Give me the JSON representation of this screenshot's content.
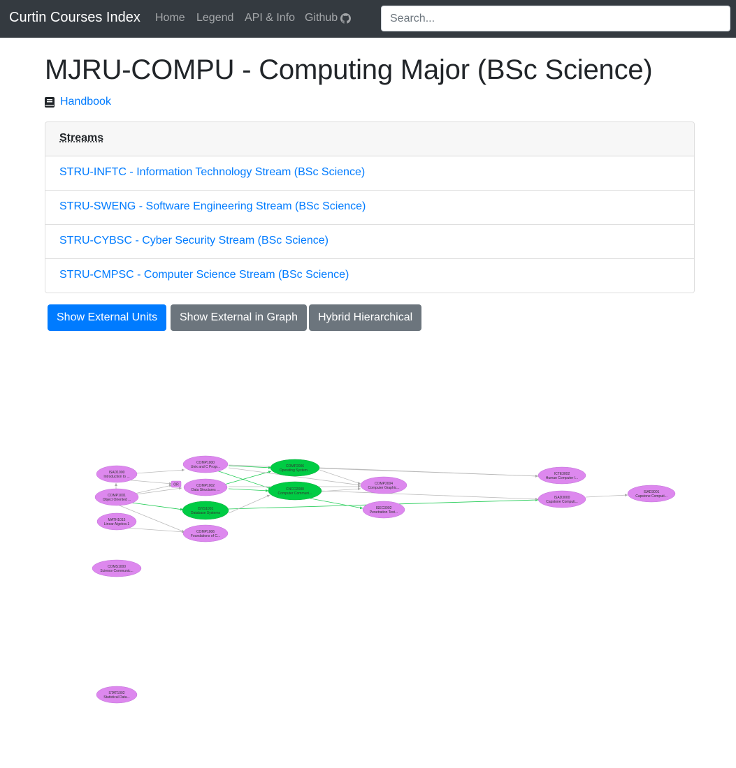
{
  "navbar": {
    "brand": "Curtin Courses Index",
    "links": [
      "Home",
      "Legend",
      "API & Info",
      "Github"
    ],
    "github_icon": "github-icon",
    "search_placeholder": "Search..."
  },
  "page": {
    "title": "MJRU-COMPU - Computing Major (BSc Science)",
    "handbook_label": "Handbook",
    "handbook_icon": "book-icon"
  },
  "streams": {
    "header": "Streams",
    "items": [
      "STRU-INFTC - Information Technology Stream (BSc Science)",
      "STRU-SWENG - Software Engineering Stream (BSc Science)",
      "STRU-CYBSC - Cyber Security Stream (BSc Science)",
      "STRU-CMPSC - Computer Science Stream (BSc Science)"
    ]
  },
  "buttons": {
    "show_external_units": "Show External Units",
    "show_external_in_graph": "Show External in Graph",
    "hybrid_hierarchical": "Hybrid Hierarchical"
  },
  "colors": {
    "navbar": "#343a40",
    "link": "#007bff",
    "node_core": "#00cc44",
    "node_other": "#dd88ee",
    "edge_core": "#22cc55",
    "edge_other": "#bbbbbb"
  },
  "graph": {
    "or_label": "OR",
    "nodes": [
      {
        "code": "ISAD1000",
        "name": "Introduction to ..."
      },
      {
        "code": "COMP1001",
        "name": "Object Oriented ..."
      },
      {
        "code": "MATH1015",
        "name": "Linear Algebra 1"
      },
      {
        "code": "COMS1000",
        "name": "Science Communic..."
      },
      {
        "code": "STAT1002",
        "name": "Statistical Data..."
      },
      {
        "code": "COMP1000",
        "name": "Unix and C Progr..."
      },
      {
        "code": "COMP1002",
        "name": "Data Structures ..."
      },
      {
        "code": "ISYS1001",
        "name": "Database Systems"
      },
      {
        "code": "COMP1006",
        "name": "Foundations of C..."
      },
      {
        "code": "COMP2006",
        "name": "Operating System..."
      },
      {
        "code": "CNCO2000",
        "name": "Computer Communi..."
      },
      {
        "code": "COMP2004",
        "name": "Computer Graphic..."
      },
      {
        "code": "ISEC3002",
        "name": "Penetration Test..."
      },
      {
        "code": "ICTE3002",
        "name": "Human Computer I..."
      },
      {
        "code": "ISAD3000",
        "name": "Capstone Computi..."
      },
      {
        "code": "ISAD3001",
        "name": "Capstone Computi..."
      }
    ]
  }
}
